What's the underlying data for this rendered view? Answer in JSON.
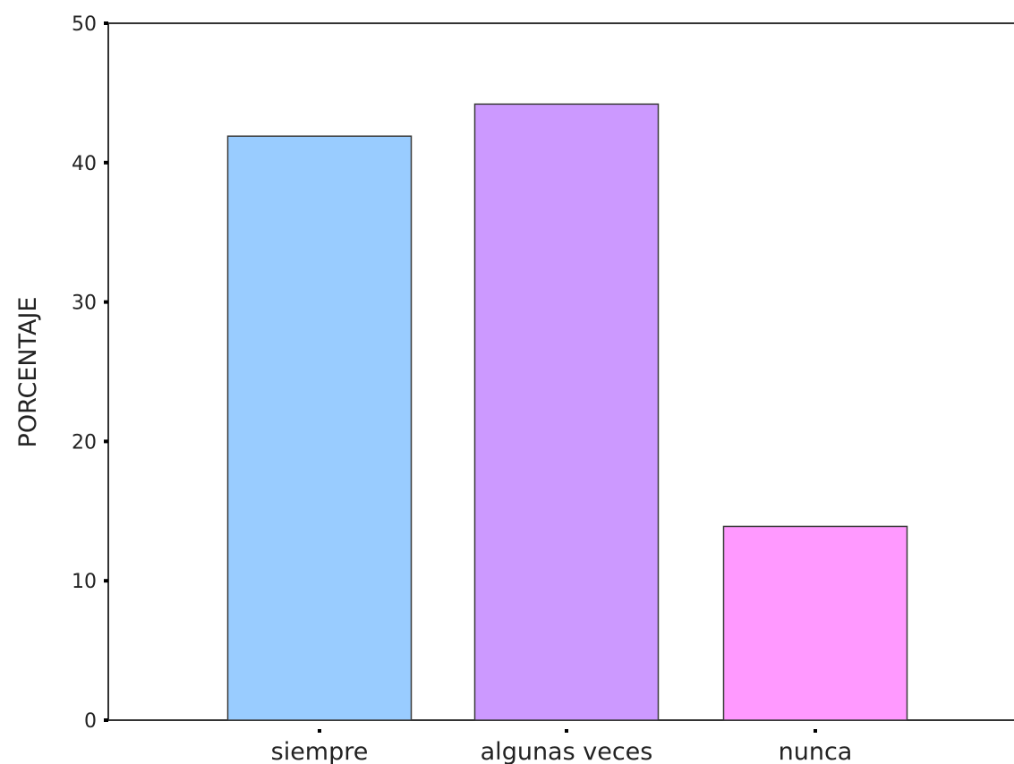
{
  "chart_data": {
    "type": "bar",
    "title": "",
    "xlabel": "",
    "ylabel": "PORCENTAJE",
    "categories": [
      "siempre",
      "algunas veces",
      "nunca"
    ],
    "values": [
      41.9,
      44.2,
      13.9
    ],
    "colors": [
      "#99ccff",
      "#cc99ff",
      "#ff99ff"
    ],
    "ylim": [
      0,
      50
    ],
    "yticks": [
      0,
      10,
      20,
      30,
      40,
      50
    ],
    "grid": false,
    "legend": "none"
  }
}
